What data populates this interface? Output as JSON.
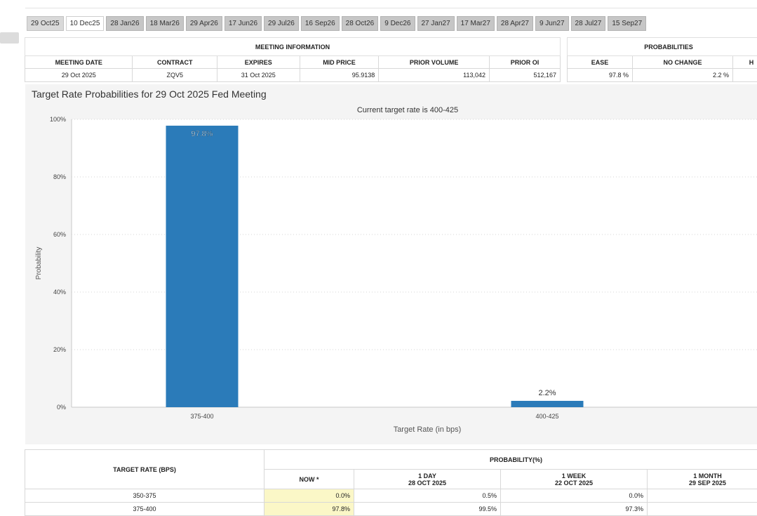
{
  "tabs": [
    "29 Oct25",
    "10 Dec25",
    "28 Jan26",
    "18 Mar26",
    "29 Apr26",
    "17 Jun26",
    "29 Jul26",
    "16 Sep26",
    "28 Oct26",
    "9 Dec26",
    "27 Jan27",
    "17 Mar27",
    "28 Apr27",
    "9 Jun27",
    "28 Jul27",
    "15 Sep27"
  ],
  "meeting_info": {
    "title": "MEETING INFORMATION",
    "headers": [
      "MEETING DATE",
      "CONTRACT",
      "EXPIRES",
      "MID PRICE",
      "PRIOR VOLUME",
      "PRIOR OI"
    ],
    "values": [
      "29 Oct 2025",
      "ZQV5",
      "31 Oct 2025",
      "95.9138",
      "113,042",
      "512,167"
    ]
  },
  "probabilities": {
    "title": "PROBABILITIES",
    "headers": [
      "EASE",
      "NO CHANGE",
      "H"
    ],
    "values": [
      "97.8 %",
      "2.2 %",
      ""
    ]
  },
  "chart_title": "Target Rate Probabilities for 29 Oct 2025 Fed Meeting",
  "chart_data": {
    "type": "bar",
    "title": "Current target rate is 400-425",
    "xlabel": "Target Rate (in bps)",
    "ylabel": "Probability",
    "categories": [
      "375-400",
      "400-425"
    ],
    "values": [
      97.8,
      2.2
    ],
    "value_labels": [
      "97.8%",
      "2.2%"
    ],
    "ylim": [
      0,
      100
    ],
    "yticks": [
      0,
      20,
      40,
      60,
      80,
      100
    ],
    "ytick_labels": [
      "0%",
      "20%",
      "40%",
      "60%",
      "80%",
      "100%"
    ],
    "grid": true,
    "bar_color": "#2b7bb9"
  },
  "target_table": {
    "col_target": "TARGET RATE (BPS)",
    "col_prob": "PROBABILITY(%)",
    "sub_cols": [
      {
        "line1": "NOW *",
        "line2": ""
      },
      {
        "line1": "1 DAY",
        "line2": "28 OCT 2025"
      },
      {
        "line1": "1 WEEK",
        "line2": "22 OCT 2025"
      },
      {
        "line1": "1 MONTH",
        "line2": "29 SEP 2025"
      }
    ],
    "rows": [
      {
        "rate": "350-375",
        "now": "0.0%",
        "day": "0.5%",
        "week": "0.0%",
        "month": ""
      },
      {
        "rate": "375-400",
        "now": "97.8%",
        "day": "99.5%",
        "week": "97.3%",
        "month": ""
      }
    ]
  },
  "colors": {
    "bar": "#2b7bb9",
    "panel_bg": "#f4f4f4",
    "now_highlight": "#fbf7c7"
  }
}
